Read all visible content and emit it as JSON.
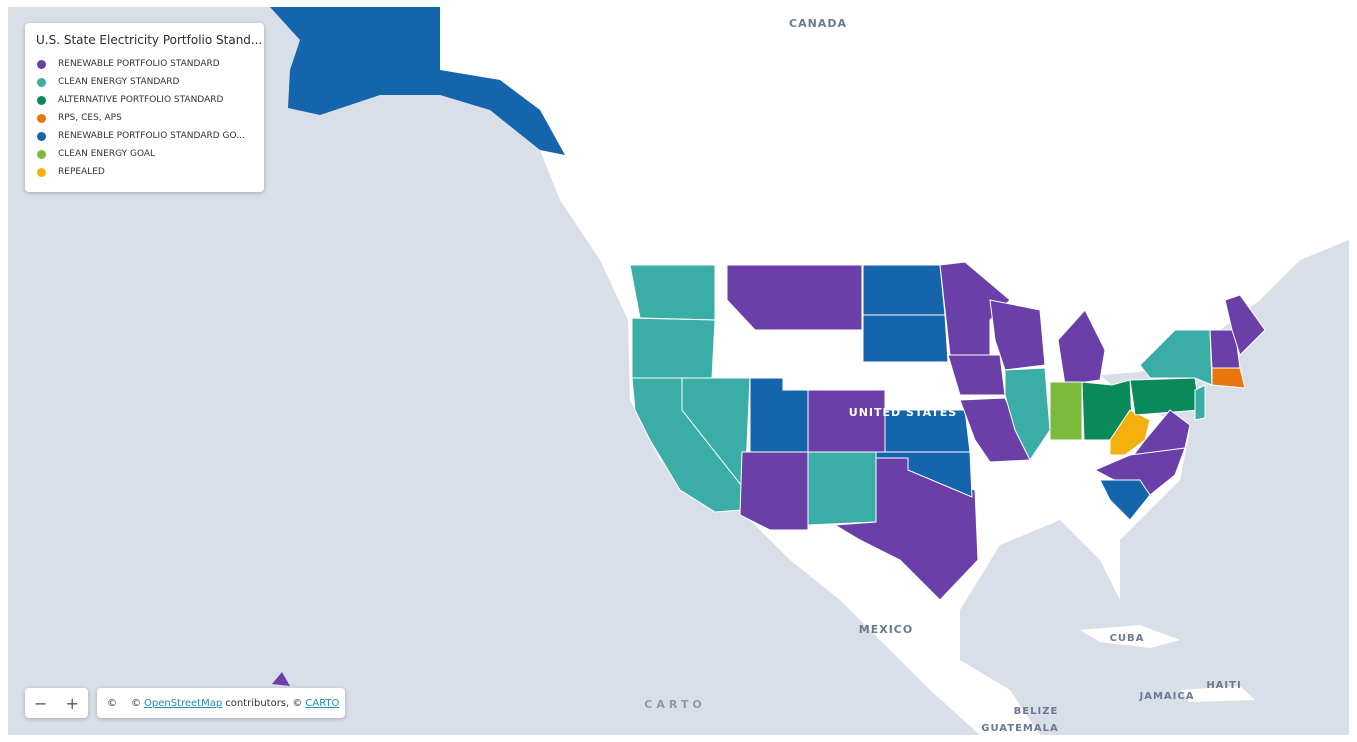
{
  "legend": {
    "title": "U.S. State Electricity Portfolio Stand...",
    "items": [
      {
        "label": "RENEWABLE PORTFOLIO STANDARD",
        "color": "#6a3fa8"
      },
      {
        "label": "CLEAN ENERGY STANDARD",
        "color": "#3aaea6"
      },
      {
        "label": "ALTERNATIVE PORTFOLIO STANDARD",
        "color": "#0a8a5a"
      },
      {
        "label": "RPS, CES, APS",
        "color": "#e8750e"
      },
      {
        "label": "RENEWABLE PORTFOLIO STANDARD GO...",
        "color": "#1565ad"
      },
      {
        "label": "CLEAN ENERGY GOAL",
        "color": "#7cba3c"
      },
      {
        "label": "REPEALED",
        "color": "#f5b00e"
      }
    ]
  },
  "map_labels": [
    "CANADA",
    "UNITED STATES",
    "MEXICO",
    "CUBA",
    "JAMAICA",
    "HAITI",
    "BELIZE",
    "GUATEMALA"
  ],
  "zoom": {
    "out": "−",
    "in": "+"
  },
  "attribution": {
    "info": "©",
    "prefix": "©",
    "osm": "OpenStreetMap",
    "middle": "contributors, ©",
    "carto": "CARTO"
  },
  "logo": "CARTO"
}
